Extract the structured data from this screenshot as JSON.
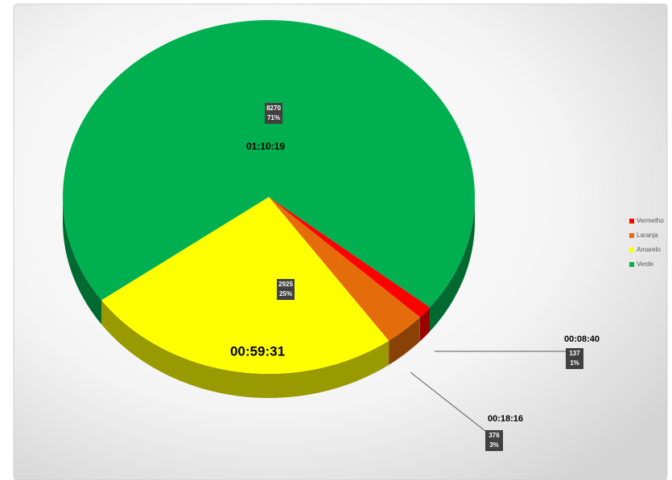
{
  "chart_data": {
    "type": "pie",
    "categories": [
      "Vermelho",
      "Laranja",
      "Amarelo",
      "Verde"
    ],
    "values": [
      137,
      376,
      2925,
      8270
    ],
    "percent_labels": [
      "1%",
      "3%",
      "25%",
      "71%"
    ],
    "time_labels": [
      "00:08:40",
      "00:18:16",
      "00:59:31",
      "01:10:19"
    ],
    "colors": [
      "#ff0000",
      "#e46c0a",
      "#ffff00",
      "#00b050"
    ],
    "legend": "right"
  }
}
